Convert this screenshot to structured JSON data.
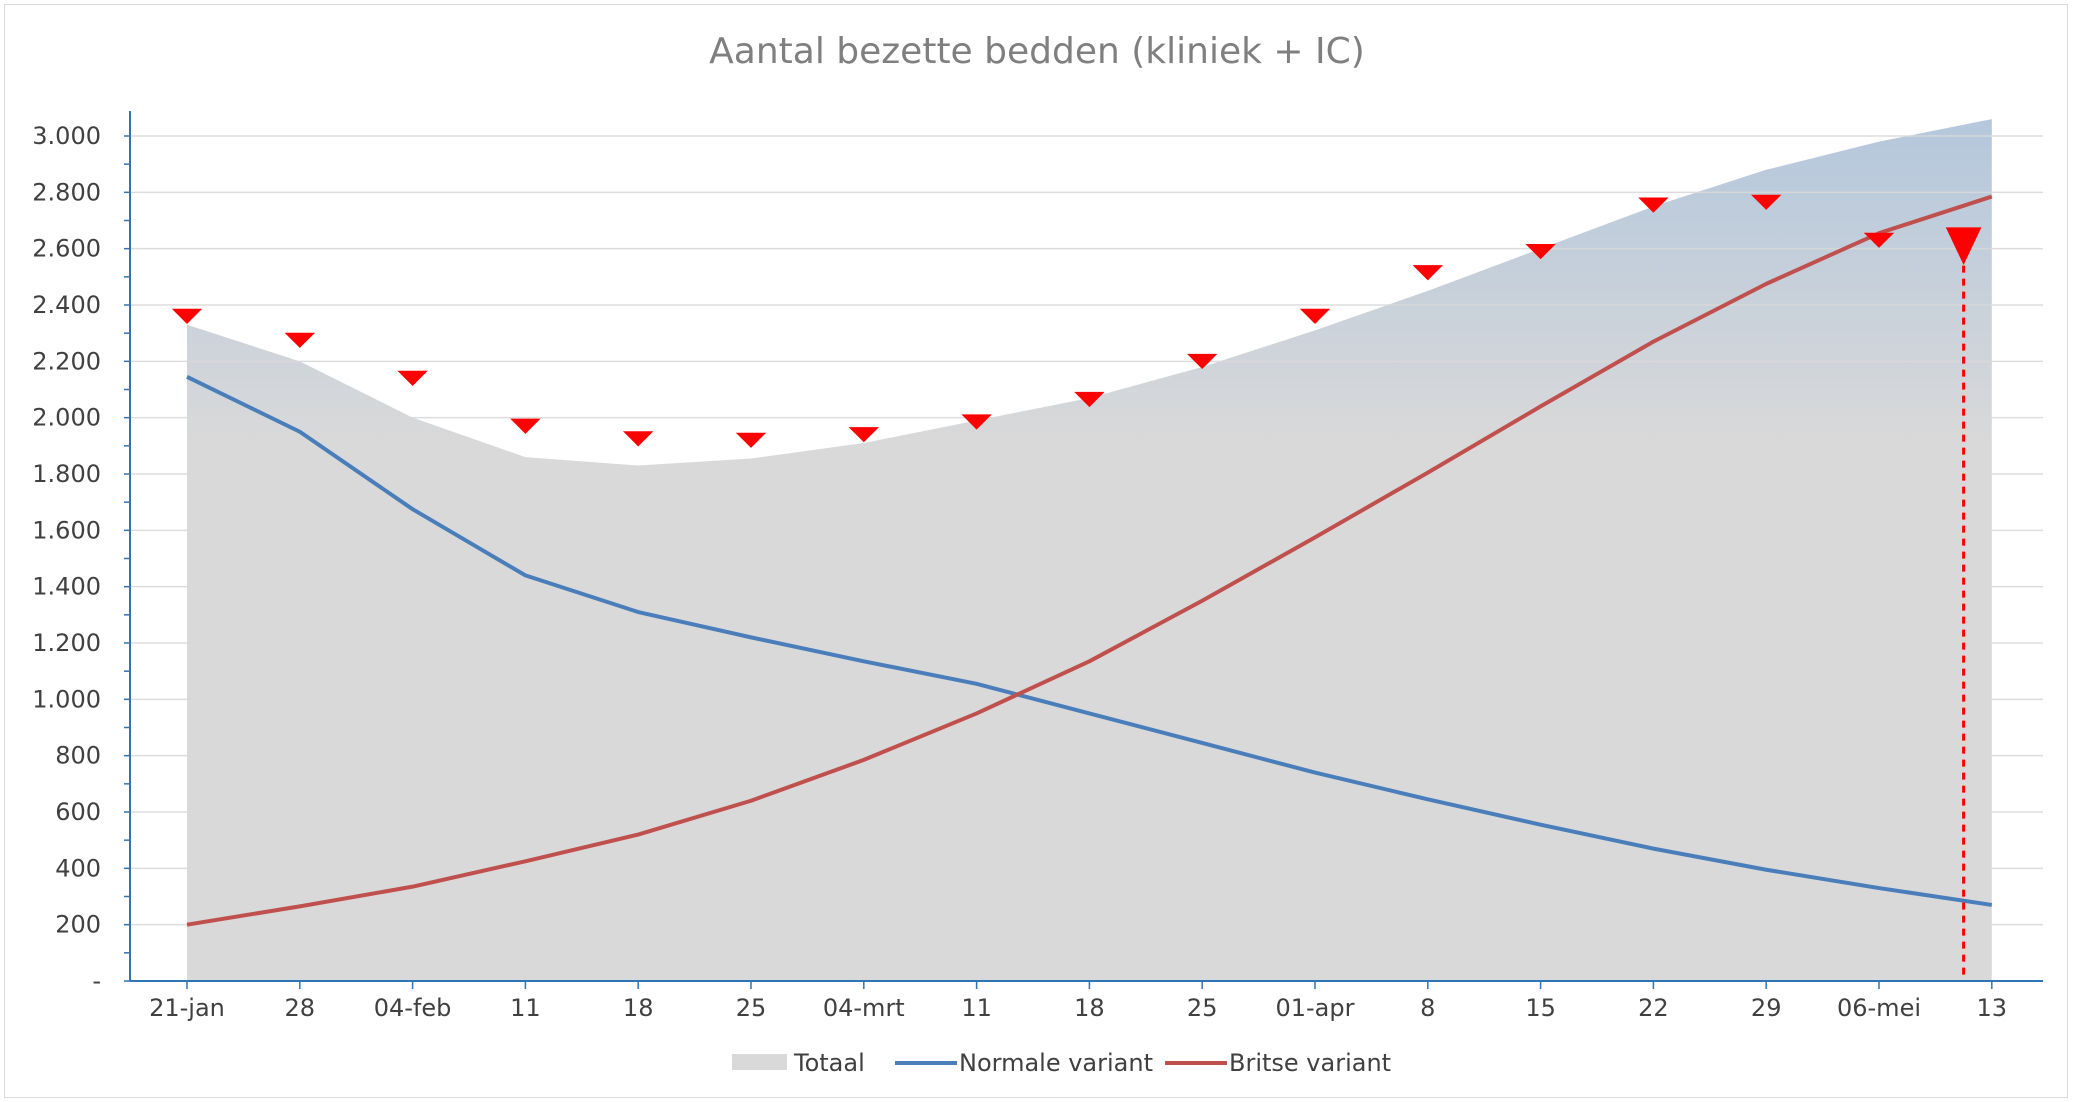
{
  "chart_data": {
    "type": "area",
    "title": "Aantal bezette bedden (kliniek + IC)",
    "xlabel": "",
    "ylabel": "",
    "categories": [
      "21-jan",
      "28",
      "04-feb",
      "11",
      "18",
      "25",
      "04-mrt",
      "11",
      "18",
      "25",
      "01-apr",
      "8",
      "15",
      "22",
      "29",
      "06-mei",
      "13"
    ],
    "ylim": [
      0,
      3000
    ],
    "y_ticks": [
      {
        "value": 0,
        "label": "-"
      },
      {
        "value": 200,
        "label": "200"
      },
      {
        "value": 400,
        "label": "400"
      },
      {
        "value": 600,
        "label": "600"
      },
      {
        "value": 800,
        "label": "800"
      },
      {
        "value": 1000,
        "label": "1.000"
      },
      {
        "value": 1200,
        "label": "1.200"
      },
      {
        "value": 1400,
        "label": "1.400"
      },
      {
        "value": 1600,
        "label": "1.600"
      },
      {
        "value": 1800,
        "label": "1.800"
      },
      {
        "value": 2000,
        "label": "2.000"
      },
      {
        "value": 2200,
        "label": "2.200"
      },
      {
        "value": 2400,
        "label": "2.400"
      },
      {
        "value": 2600,
        "label": "2.600"
      },
      {
        "value": 2800,
        "label": "2.800"
      },
      {
        "value": 3000,
        "label": "3.000"
      }
    ],
    "grid": true,
    "legend_position": "bottom",
    "series": [
      {
        "name": "Totaal",
        "kind": "area",
        "color": "#d9d9d9",
        "top_color": "#b4c7dc",
        "values": [
          2330,
          2200,
          2000,
          1860,
          1830,
          1855,
          1910,
          1990,
          2070,
          2180,
          2310,
          2450,
          2600,
          2750,
          2880,
          2980,
          3060
        ]
      },
      {
        "name": "Normale variant",
        "kind": "line",
        "color": "#4a7ebb",
        "values": [
          2145,
          1950,
          1675,
          1440,
          1310,
          1220,
          1135,
          1055,
          950,
          845,
          740,
          645,
          555,
          470,
          395,
          330,
          270
        ]
      },
      {
        "name": "Britse variant",
        "kind": "line",
        "color": "#c0504d",
        "values": [
          200,
          265,
          335,
          425,
          520,
          640,
          785,
          950,
          1135,
          1350,
          1575,
          1805,
          2040,
          2270,
          2475,
          2655,
          2785
        ]
      }
    ],
    "markers": {
      "shape": "triangle-down",
      "color": "#ff0000",
      "points": [
        {
          "x": 0,
          "value": 2360
        },
        {
          "x": 1,
          "value": 2275
        },
        {
          "x": 2,
          "value": 2140
        },
        {
          "x": 3,
          "value": 1970
        },
        {
          "x": 4,
          "value": 1925
        },
        {
          "x": 5,
          "value": 1920
        },
        {
          "x": 6,
          "value": 1940
        },
        {
          "x": 7,
          "value": 1985
        },
        {
          "x": 8,
          "value": 2065
        },
        {
          "x": 9,
          "value": 2200
        },
        {
          "x": 10,
          "value": 2360
        },
        {
          "x": 11,
          "value": 2515
        },
        {
          "x": 12,
          "value": 2590
        },
        {
          "x": 13,
          "value": 2755
        },
        {
          "x": 14,
          "value": 2765
        },
        {
          "x": 15,
          "value": 2630
        },
        {
          "x": 15.75,
          "value": 2610,
          "large": true
        }
      ]
    },
    "reference_line": {
      "x": 15.75,
      "color": "#ff0000",
      "style": "dashed"
    }
  }
}
